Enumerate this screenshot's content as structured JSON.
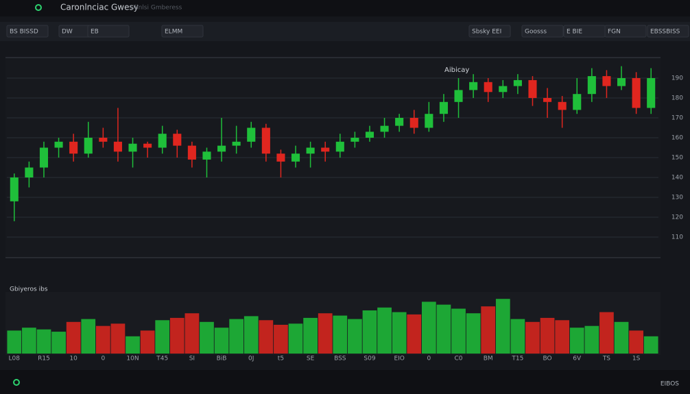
{
  "header": {
    "title": "Caronlnciac Gwesy",
    "subtitle": "Ulinlsi Gmberess"
  },
  "toolbar": [
    "BS BISSD",
    "DW",
    "EB",
    "ELMM",
    "Sbsky EEI",
    "Goosss",
    "E BIE",
    "FGN",
    "EBSSBISS"
  ],
  "chart_data": {
    "type": "candlestick",
    "annotation": "Aibicay",
    "categories": [
      "L08",
      null,
      "R15",
      null,
      "10",
      null,
      "0",
      null,
      "10N",
      null,
      "T45",
      null,
      "SI",
      null,
      "BiB",
      null,
      "0J",
      null,
      "t5",
      null,
      "SE",
      null,
      "BSS",
      null,
      "S09",
      null,
      "EIO",
      null,
      "0",
      null,
      "C0",
      null,
      "BM",
      null,
      "T15",
      null,
      "BO",
      null,
      "6V",
      null,
      "TS",
      null,
      "1S",
      null
    ],
    "open": [
      128,
      140,
      145,
      155,
      158,
      152,
      160,
      158,
      153,
      157,
      155,
      162,
      156,
      149,
      153,
      156,
      158,
      165,
      152,
      148,
      152,
      155,
      153,
      158,
      160,
      163,
      166,
      170,
      165,
      172,
      178,
      184,
      188,
      183,
      186,
      189,
      180,
      178,
      174,
      182,
      191,
      186,
      190,
      175
    ],
    "close": [
      140,
      145,
      155,
      158,
      152,
      160,
      158,
      153,
      157,
      155,
      162,
      156,
      149,
      153,
      156,
      158,
      165,
      152,
      148,
      152,
      155,
      153,
      158,
      160,
      163,
      166,
      170,
      165,
      172,
      178,
      184,
      188,
      183,
      186,
      189,
      180,
      178,
      174,
      182,
      191,
      186,
      190,
      175,
      190
    ],
    "high": [
      142,
      148,
      158,
      160,
      162,
      168,
      165,
      175,
      160,
      158,
      166,
      164,
      158,
      155,
      170,
      166,
      168,
      167,
      154,
      156,
      158,
      158,
      162,
      163,
      166,
      170,
      172,
      174,
      178,
      182,
      190,
      192,
      190,
      189,
      192,
      191,
      185,
      181,
      190,
      195,
      194,
      196,
      193,
      195
    ],
    "low": [
      118,
      135,
      140,
      150,
      148,
      150,
      155,
      148,
      145,
      150,
      152,
      150,
      145,
      140,
      148,
      152,
      155,
      148,
      140,
      145,
      145,
      148,
      150,
      155,
      158,
      160,
      163,
      162,
      163,
      168,
      170,
      180,
      178,
      180,
      182,
      176,
      170,
      165,
      172,
      178,
      180,
      184,
      172,
      172
    ],
    "up_color": "#1fbf3a",
    "down_color": "#e0261f",
    "ylim": [
      100,
      200
    ],
    "yticks": [
      110,
      120,
      130,
      140,
      150,
      160,
      170,
      180,
      190
    ],
    "grid": true,
    "volume": {
      "title": "Gbiyeros ibs",
      "ylim": [
        0,
        100
      ],
      "values": [
        40,
        45,
        42,
        38,
        55,
        60,
        48,
        52,
        30,
        40,
        58,
        62,
        70,
        55,
        45,
        60,
        65,
        58,
        50,
        52,
        62,
        70,
        66,
        60,
        75,
        80,
        72,
        68,
        90,
        85,
        78,
        70,
        82,
        95,
        60,
        55,
        62,
        58,
        45,
        48,
        72,
        55,
        40,
        30
      ]
    }
  },
  "footer": {
    "status": "EIBOS"
  }
}
